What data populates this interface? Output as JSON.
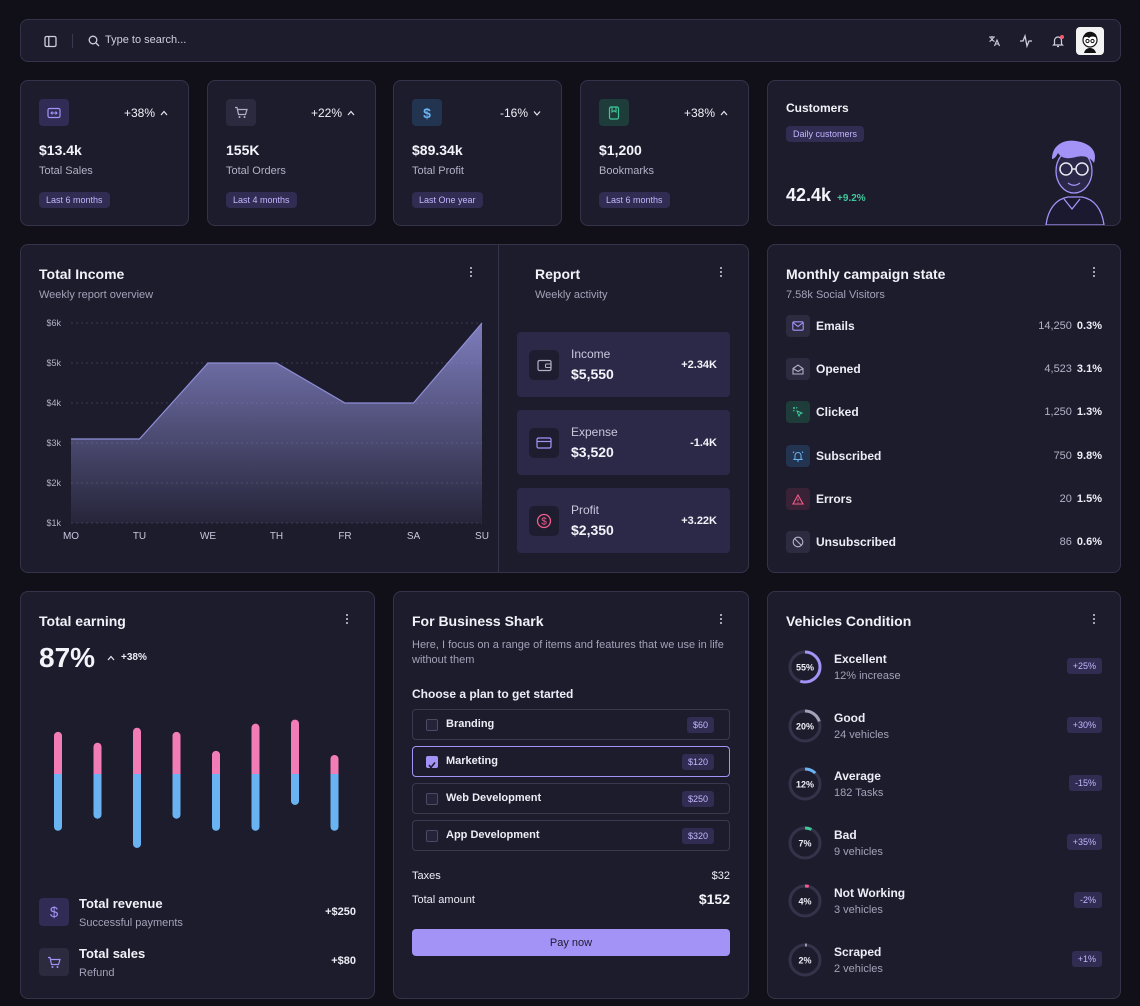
{
  "header": {
    "search_placeholder": "Type to search...",
    "icons": [
      "sidebar-toggle-icon",
      "search-icon",
      "translate-icon",
      "activity-icon",
      "bell-icon",
      "avatar"
    ]
  },
  "stats": [
    {
      "change": "+38%",
      "direction": "up",
      "value": "$13.4k",
      "label": "Total Sales",
      "period": "Last 6 months",
      "icon": "ticket-icon",
      "color": "#a493f7"
    },
    {
      "change": "+22%",
      "direction": "up",
      "value": "155K",
      "label": "Total Orders",
      "period": "Last 4 months",
      "icon": "cart-icon",
      "color": "#a3a2b8"
    },
    {
      "change": "-16%",
      "direction": "down",
      "value": "$89.34k",
      "label": "Total Profit",
      "period": "Last One year",
      "icon": "dollar-icon",
      "color": "#6ab3f2"
    },
    {
      "change": "+38%",
      "direction": "up",
      "value": "$1,200",
      "label": "Bookmarks",
      "period": "Last 6 months",
      "icon": "bookmark-icon",
      "color": "#3fc79a"
    }
  ],
  "customers": {
    "title": "Customers",
    "badge": "Daily customers",
    "value": "42.4k",
    "change": "+9.2%"
  },
  "income": {
    "title": "Total Income",
    "subtitle": "Weekly report overview"
  },
  "chart_data": {
    "type": "area",
    "categories": [
      "MO",
      "TU",
      "WE",
      "TH",
      "FR",
      "SA",
      "SU"
    ],
    "values": [
      3100,
      3100,
      5000,
      5000,
      4000,
      4000,
      6000
    ],
    "yticks": [
      "$1k",
      "$2k",
      "$3k",
      "$4k",
      "$5k",
      "$6k"
    ],
    "ylim": [
      1000,
      6000
    ],
    "grid": true,
    "color": "#8f8ed6"
  },
  "report": {
    "title": "Report",
    "subtitle": "Weekly activity",
    "items": [
      {
        "label": "Income",
        "value": "$5,550",
        "change": "+2.34K",
        "icon": "wallet-icon"
      },
      {
        "label": "Expense",
        "value": "$3,520",
        "change": "-1.4K",
        "icon": "credit-card-icon"
      },
      {
        "label": "Profit",
        "value": "$2,350",
        "change": "+3.22K",
        "icon": "dollar-circle-icon"
      }
    ]
  },
  "campaign": {
    "title": "Monthly campaign state",
    "subtitle": "7.58k Social Visitors",
    "rows": [
      {
        "label": "Emails",
        "count": "14,250",
        "pct": "0.3%",
        "icon": "mail-icon",
        "color": "#a493f7"
      },
      {
        "label": "Opened",
        "count": "4,523",
        "pct": "3.1%",
        "icon": "mail-open-icon",
        "color": "#a3a2b8"
      },
      {
        "label": "Clicked",
        "count": "1,250",
        "pct": "1.3%",
        "icon": "click-icon",
        "color": "#3fc79a"
      },
      {
        "label": "Subscribed",
        "count": "750",
        "pct": "9.8%",
        "icon": "bell-ring-icon",
        "color": "#6ab3f2"
      },
      {
        "label": "Errors",
        "count": "20",
        "pct": "1.5%",
        "icon": "warning-icon",
        "color": "#f25c8a"
      },
      {
        "label": "Unsubscribed",
        "count": "86",
        "pct": "0.6%",
        "icon": "ban-icon",
        "color": "#a3a2b8"
      }
    ]
  },
  "earning": {
    "title": "Total earning",
    "value": "87%",
    "change": "+38%",
    "bars": [
      {
        "top": 0.62,
        "bottom": 0.66
      },
      {
        "top": 0.46,
        "bottom": 0.52
      },
      {
        "top": 0.68,
        "bottom": 0.86
      },
      {
        "top": 0.62,
        "bottom": 0.52
      },
      {
        "top": 0.34,
        "bottom": 0.66
      },
      {
        "top": 0.74,
        "bottom": 0.66
      },
      {
        "top": 0.8,
        "bottom": 0.36
      },
      {
        "top": 0.28,
        "bottom": 0.66
      }
    ],
    "colors": {
      "top": "#f27db6",
      "bottom": "#6ab3f2"
    },
    "revenue": {
      "label": "Total revenue",
      "sub": "Successful payments",
      "value": "+$250"
    },
    "sales": {
      "label": "Total sales",
      "sub": "Refund",
      "value": "+$80"
    }
  },
  "business": {
    "title": "For Business Shark",
    "description": "Here, I focus on a range of items and features that we use in life without them",
    "choose": "Choose a plan to get started",
    "plans": [
      {
        "name": "Branding",
        "price": "$60",
        "selected": false
      },
      {
        "name": "Marketing",
        "price": "$120",
        "selected": true
      },
      {
        "name": "Web Development",
        "price": "$250",
        "selected": false
      },
      {
        "name": "App Development",
        "price": "$320",
        "selected": false
      }
    ],
    "taxes_label": "Taxes",
    "taxes": "$32",
    "total_label": "Total amount",
    "total": "$152",
    "pay": "Pay now"
  },
  "vehicles": {
    "title": "Vehicles Condition",
    "items": [
      {
        "pct": "55%",
        "value": 55,
        "name": "Excellent",
        "sub": "12% increase",
        "badge": "+25%",
        "color": "#a493f7"
      },
      {
        "pct": "20%",
        "value": 20,
        "name": "Good",
        "sub": "24 vehicles",
        "badge": "+30%",
        "color": "#a3a2b8"
      },
      {
        "pct": "12%",
        "value": 12,
        "name": "Average",
        "sub": "182 Tasks",
        "badge": "-15%",
        "color": "#6ab3f2"
      },
      {
        "pct": "7%",
        "value": 7,
        "name": "Bad",
        "sub": "9 vehicles",
        "badge": "+35%",
        "color": "#3fc79a"
      },
      {
        "pct": "4%",
        "value": 4,
        "name": "Not Working",
        "sub": "3 vehicles",
        "badge": "-2%",
        "color": "#f25c8a"
      },
      {
        "pct": "2%",
        "value": 2,
        "name": "Scraped",
        "sub": "2 vehicles",
        "badge": "+1%",
        "color": "#a3a2b8"
      }
    ]
  }
}
